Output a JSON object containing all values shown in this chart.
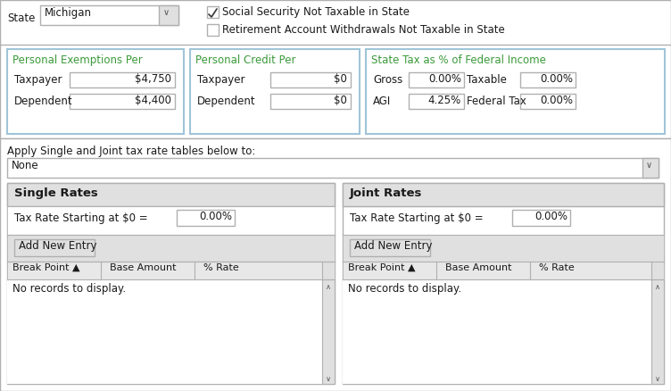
{
  "bg_color": "#f0f0f0",
  "white": "#ffffff",
  "green_text": "#3a9a3a",
  "black": "#000000",
  "gray_border": "#b0b0b0",
  "light_blue_border": "#a0c4d8",
  "section_bg": "#e8e8e8",
  "header_bg": "#e0e0e0",
  "button_bg": "#e0e0e0",
  "col_header_bg": "#e8e8e8",
  "state_label": "State",
  "state_value": "Michigan",
  "checkbox1_text": "Social Security Not Taxable in State",
  "checkbox2_text": "Retirement Account Withdrawals Not Taxable in State",
  "checkbox1_checked": true,
  "checkbox2_checked": false,
  "box1_title": "Personal Exemptions Per",
  "box1_row1_label": "Taxpayer",
  "box1_row1_value": "$4,750",
  "box1_row2_label": "Dependent",
  "box1_row2_value": "$4,400",
  "box2_title": "Personal Credit Per",
  "box2_row1_label": "Taxpayer",
  "box2_row1_value": "$0",
  "box2_row2_label": "Dependent",
  "box2_row2_value": "$0",
  "box3_title": "State Tax as % of Federal Income",
  "box3_row1_label1": "Gross",
  "box3_row1_val1": "0.00%",
  "box3_row1_label2": "Taxable",
  "box3_row1_val2": "0.00%",
  "box3_row2_label1": "AGI",
  "box3_row2_val1": "4.25%",
  "box3_row2_label2": "Federal Tax",
  "box3_row2_val2": "0.00%",
  "apply_text": "Apply Single and Joint tax rate tables below to:",
  "dropdown_value": "None",
  "single_title": "Single Rates",
  "joint_title": "Joint Rates",
  "tax_rate_label": "Tax Rate Starting at $0 =",
  "tax_rate_value": "0.00%",
  "button_text": "Add New Entry",
  "col1": "Break Point ▲",
  "col2": "Base Amount",
  "col3": "% Rate",
  "no_records": "No records to display."
}
